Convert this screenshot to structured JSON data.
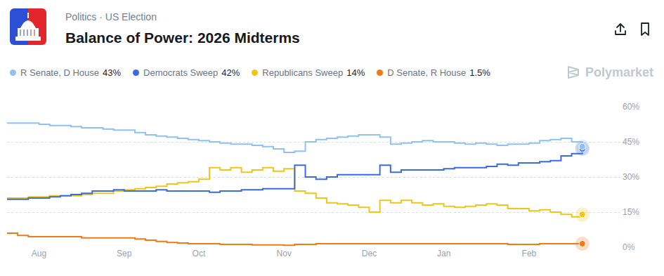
{
  "chart_data": {
    "type": "line",
    "subtitle": "Politics · US Election",
    "title": "Balance of Power: 2026 Midterms",
    "source": "Polymarket",
    "line_style": "step",
    "legend": "top",
    "grid": true,
    "categories": [
      null,
      null,
      null,
      "Aug",
      null,
      null,
      null,
      null,
      null,
      null,
      null,
      "Sep",
      null,
      null,
      null,
      null,
      null,
      null,
      "Oct",
      null,
      null,
      null,
      null,
      null,
      null,
      null,
      "Nov",
      null,
      null,
      null,
      null,
      null,
      null,
      null,
      "Dec",
      null,
      null,
      null,
      null,
      null,
      null,
      "Jan",
      null,
      null,
      null,
      null,
      null,
      null,
      null,
      "Feb",
      null,
      null,
      null,
      null,
      null
    ],
    "series": [
      {
        "name": "R Senate, D House",
        "color": "#8fc1f4",
        "values": [
          53,
          53,
          53,
          52.5,
          52,
          52,
          51.5,
          51,
          51,
          50.5,
          50,
          50,
          49,
          48,
          47.5,
          47,
          46.5,
          46,
          45.5,
          45,
          44.5,
          44,
          44,
          43.5,
          43,
          42,
          40.5,
          41,
          45,
          46,
          46.5,
          47,
          47.5,
          48,
          48,
          47,
          44,
          44.5,
          45,
          45.5,
          45,
          45,
          44.5,
          44,
          44.5,
          44,
          43.5,
          44,
          44,
          44.5,
          45.5,
          46,
          46.5,
          45,
          43
        ],
        "latest": {
          "value": 43,
          "label": "43%"
        }
      },
      {
        "name": "Democrats Sweep",
        "color": "#3a6be0",
        "values": [
          20.5,
          20.5,
          21,
          21,
          21.5,
          22,
          22.5,
          23,
          24,
          24,
          24.5,
          24,
          24,
          24,
          24.5,
          24,
          24,
          24,
          24,
          23.5,
          24,
          24,
          24.5,
          24.5,
          25,
          25,
          25,
          35,
          30,
          29,
          30,
          31,
          31,
          31,
          31,
          35,
          32,
          33,
          33,
          33,
          33,
          33.5,
          34,
          34,
          34,
          34.5,
          35.5,
          35,
          36,
          36,
          36.5,
          37,
          39,
          40,
          42
        ],
        "latest": {
          "value": 42,
          "label": "42%"
        }
      },
      {
        "name": "Republicans Sweep",
        "color": "#efc51c",
        "values": [
          21,
          21,
          21.5,
          21.5,
          22,
          22,
          22,
          22.5,
          23,
          23,
          24,
          24.5,
          25,
          25.5,
          26,
          27,
          27.5,
          28,
          29,
          34,
          33,
          34,
          32,
          33,
          34,
          32.5,
          33.5,
          24,
          23,
          21,
          19,
          18.5,
          18,
          17,
          15,
          20,
          19,
          20,
          19,
          18,
          18.5,
          17.5,
          17,
          17.5,
          18,
          18.5,
          18,
          16.5,
          16.5,
          15.5,
          16,
          15,
          14,
          13,
          14
        ],
        "latest": {
          "value": 14,
          "label": "14%"
        }
      },
      {
        "name": "D Senate, R House",
        "color": "#f07b16",
        "values": [
          6,
          5,
          4.5,
          4.5,
          4.5,
          4.5,
          4.5,
          4,
          4,
          4,
          4,
          4,
          3.5,
          3,
          2.5,
          2,
          1.8,
          1.5,
          1.5,
          1.5,
          1.2,
          1.2,
          1.2,
          1,
          1,
          1,
          0.8,
          1.2,
          1.2,
          1.5,
          1.5,
          1.5,
          1.5,
          1.5,
          1.5,
          1.5,
          1.5,
          1.5,
          1.5,
          1.5,
          1.5,
          1.5,
          1.5,
          1.5,
          1.5,
          1.5,
          1.5,
          1.2,
          1.2,
          1.2,
          1.5,
          1.5,
          1.5,
          1.5,
          1.5
        ],
        "latest": {
          "value": 1.5,
          "label": "1.5%"
        }
      }
    ],
    "ylim": [
      0,
      60
    ],
    "yticks": [
      {
        "value": 0,
        "label": "0%"
      },
      {
        "value": 15,
        "label": "15%"
      },
      {
        "value": 30,
        "label": "30%"
      },
      {
        "value": 45,
        "label": "45%"
      },
      {
        "value": 60,
        "label": "60%"
      }
    ]
  }
}
